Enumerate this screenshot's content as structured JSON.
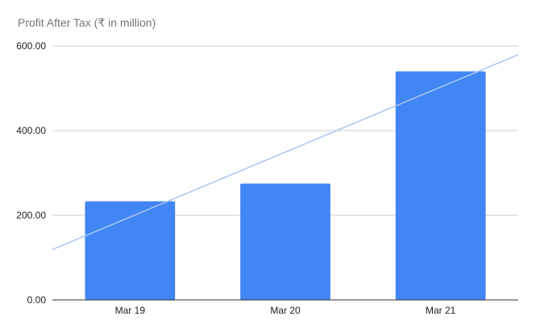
{
  "chart_data": {
    "type": "bar",
    "title": "Profit After Tax (₹ in million)",
    "categories": [
      "Mar 19",
      "Mar 20",
      "Mar 21"
    ],
    "series": [
      {
        "values": [
          233,
          275,
          540
        ],
        "color": "#4285f4"
      }
    ],
    "trendline": {
      "type": "linear",
      "color": "#a8c7f0"
    },
    "ylim": [
      0,
      600
    ],
    "yticks": [
      0,
      200,
      400,
      600
    ],
    "ytick_labels": [
      "0.00",
      "200.00",
      "400.00",
      "600.00"
    ],
    "grid": true,
    "legend": "none",
    "xlabel": "",
    "ylabel": ""
  }
}
